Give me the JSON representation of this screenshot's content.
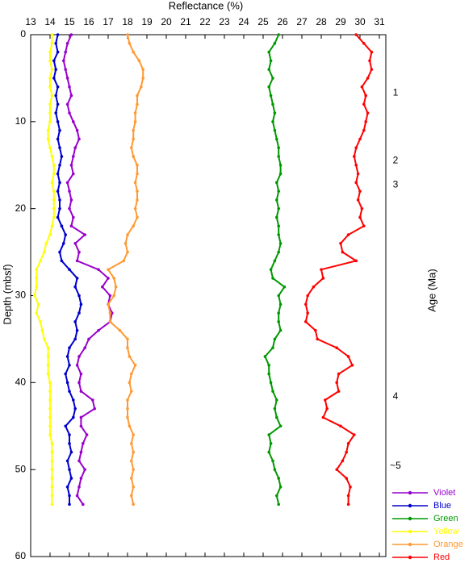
{
  "chart_data": {
    "type": "line",
    "title": "Reflectance (%)",
    "y_label": "Depth (mbsf)",
    "y2_label": "Age (Ma)",
    "xlim": [
      13,
      31
    ],
    "xticks": [
      13,
      14,
      15,
      16,
      17,
      18,
      19,
      20,
      21,
      22,
      23,
      24,
      25,
      26,
      27,
      28,
      29,
      30,
      31
    ],
    "ylim": [
      0,
      60
    ],
    "yticks": [
      0,
      10,
      20,
      30,
      40,
      50,
      60
    ],
    "y_inverted": true,
    "legend": "lower right outside",
    "age_markers": [
      {
        "depth": 6.7,
        "label": "1"
      },
      {
        "depth": 14.5,
        "label": "2"
      },
      {
        "depth": 17.3,
        "label": "3"
      },
      {
        "depth": 41.6,
        "label": "4"
      },
      {
        "depth": 49.6,
        "label": "~5"
      }
    ],
    "y": [
      0,
      1,
      2,
      3,
      4,
      5,
      6,
      7,
      8,
      9,
      10,
      11,
      12,
      13,
      14,
      15,
      16,
      17,
      18,
      19,
      20,
      21,
      22,
      23,
      24,
      25,
      26,
      27,
      28,
      29,
      30,
      31,
      32,
      33,
      34,
      35,
      36,
      37,
      38,
      39,
      40,
      41,
      42,
      43,
      44,
      45,
      46,
      47,
      48,
      49,
      50,
      51,
      52,
      53,
      54
    ],
    "series": [
      {
        "name": "Violet",
        "color": "#9900cc",
        "values": [
          15.1,
          14.9,
          14.8,
          14.7,
          14.8,
          14.9,
          15.0,
          15.1,
          14.9,
          15.0,
          15.2,
          15.4,
          15.5,
          15.3,
          15.2,
          15.1,
          15.2,
          14.9,
          15.0,
          15.1,
          15.0,
          15.2,
          15.1,
          15.8,
          15.3,
          15.5,
          15.4,
          16.5,
          17.0,
          16.7,
          17.1,
          17.0,
          17.2,
          17.1,
          16.5,
          16.0,
          15.8,
          15.5,
          15.4,
          15.6,
          15.5,
          15.6,
          16.2,
          16.3,
          15.6,
          15.6,
          15.9,
          15.7,
          15.6,
          15.5,
          15.8,
          15.6,
          15.5,
          15.4,
          15.7
        ]
      },
      {
        "name": "Blue",
        "color": "#0000cc",
        "values": [
          14.4,
          14.3,
          14.4,
          14.2,
          14.3,
          14.2,
          14.4,
          14.3,
          14.4,
          14.3,
          14.4,
          14.5,
          14.4,
          14.5,
          14.6,
          14.5,
          14.4,
          14.5,
          14.4,
          14.5,
          14.5,
          14.4,
          14.6,
          14.8,
          14.7,
          14.5,
          14.6,
          15.0,
          15.4,
          15.3,
          15.5,
          15.6,
          15.5,
          15.3,
          15.4,
          15.3,
          15.0,
          14.9,
          15.0,
          14.8,
          14.9,
          15.0,
          15.2,
          15.3,
          15.2,
          14.8,
          15.0,
          15.0,
          15.1,
          14.9,
          15.0,
          15.1,
          14.9,
          15.0,
          15.0
        ]
      },
      {
        "name": "Green",
        "color": "#009900",
        "values": [
          25.8,
          25.6,
          25.3,
          25.4,
          25.3,
          25.5,
          25.3,
          25.4,
          25.5,
          25.6,
          25.5,
          25.6,
          25.7,
          25.8,
          25.8,
          25.9,
          25.9,
          25.7,
          25.8,
          25.7,
          25.8,
          25.7,
          25.8,
          25.8,
          25.9,
          25.8,
          25.6,
          25.4,
          25.5,
          26.1,
          25.8,
          25.9,
          25.8,
          25.8,
          25.9,
          25.6,
          25.5,
          25.1,
          25.3,
          25.3,
          25.4,
          25.5,
          25.7,
          25.6,
          25.7,
          25.9,
          25.3,
          25.4,
          25.3,
          25.5,
          25.6,
          25.8,
          25.9,
          25.7,
          25.8
        ]
      },
      {
        "name": "Yellow",
        "color": "#ffff00",
        "values": [
          14.1,
          14.1,
          14.0,
          14.0,
          14.1,
          14.0,
          14.0,
          14.1,
          14.0,
          14.0,
          14.0,
          13.9,
          13.9,
          14.0,
          14.1,
          14.2,
          14.2,
          14.1,
          14.2,
          14.2,
          14.2,
          14.2,
          14.1,
          14.0,
          13.8,
          13.7,
          13.5,
          13.3,
          13.3,
          13.3,
          13.2,
          13.4,
          13.3,
          13.5,
          13.6,
          13.7,
          13.9,
          13.9,
          13.9,
          13.9,
          14.0,
          14.0,
          14.0,
          14.0,
          14.0,
          14.0,
          14.0,
          14.1,
          14.1,
          14.1,
          14.1,
          14.1,
          14.1,
          14.1,
          14.1
        ]
      },
      {
        "name": "Orange",
        "color": "#ff9933",
        "values": [
          18.0,
          18.1,
          18.3,
          18.6,
          18.8,
          18.8,
          18.7,
          18.5,
          18.5,
          18.4,
          18.4,
          18.3,
          18.3,
          18.2,
          18.3,
          18.5,
          18.5,
          18.4,
          18.5,
          18.5,
          18.4,
          18.5,
          18.3,
          18.0,
          17.9,
          18.0,
          17.8,
          17.0,
          17.3,
          17.4,
          17.3,
          17.0,
          17.1,
          17.1,
          17.6,
          18.0,
          18.0,
          18.1,
          18.4,
          18.2,
          18.1,
          18.2,
          18.0,
          18.0,
          18.0,
          18.1,
          18.3,
          18.2,
          18.3,
          18.2,
          18.3,
          18.2,
          18.3,
          18.2,
          18.3
        ]
      },
      {
        "name": "Red",
        "color": "#ff0000",
        "values": [
          29.8,
          30.2,
          30.6,
          30.5,
          30.6,
          30.4,
          30.1,
          30.3,
          30.2,
          30.4,
          30.3,
          30.2,
          30.0,
          29.8,
          29.7,
          29.8,
          29.9,
          29.8,
          30.0,
          29.9,
          30.1,
          30.0,
          30.2,
          29.4,
          29.0,
          29.1,
          29.8,
          28.0,
          28.1,
          27.6,
          27.3,
          27.2,
          27.3,
          27.2,
          27.7,
          27.8,
          28.8,
          29.4,
          29.6,
          28.9,
          28.8,
          28.9,
          28.2,
          28.3,
          28.1,
          29.0,
          29.7,
          29.4,
          29.3,
          29.1,
          28.8,
          29.3,
          29.5,
          29.4,
          29.4
        ]
      }
    ]
  }
}
